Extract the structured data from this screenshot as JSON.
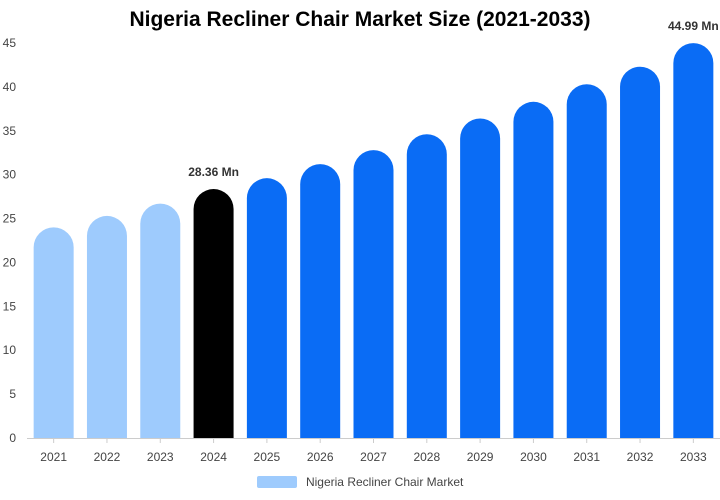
{
  "chart_data": {
    "type": "bar",
    "title": "Nigeria Recliner Chair Market Size (2021-2033)",
    "xlabel": "",
    "ylabel": "",
    "categories": [
      "2021",
      "2022",
      "2023",
      "2024",
      "2025",
      "2026",
      "2027",
      "2028",
      "2029",
      "2030",
      "2031",
      "2032",
      "2033"
    ],
    "series": [
      {
        "name": "Nigeria Recliner Chair Market",
        "values": [
          24.0,
          25.3,
          26.7,
          28.36,
          29.6,
          31.2,
          32.8,
          34.6,
          36.4,
          38.3,
          40.3,
          42.3,
          44.99
        ]
      }
    ],
    "ylim": [
      0,
      45
    ],
    "yticks": [
      0,
      5,
      10,
      15,
      20,
      25,
      30,
      35,
      40,
      45
    ],
    "data_labels": [
      {
        "category": "2024",
        "text": "28.36 Mn"
      },
      {
        "category": "2033",
        "text": "44.99 Mn"
      }
    ],
    "bar_colors": {
      "historical": "#9ecbfd",
      "current": "#000000",
      "forecast": "#0a6cf5"
    },
    "category_roles": [
      "historical",
      "historical",
      "historical",
      "current",
      "forecast",
      "forecast",
      "forecast",
      "forecast",
      "forecast",
      "forecast",
      "forecast",
      "forecast",
      "forecast"
    ],
    "grid": false,
    "legend": {
      "position": "bottom",
      "color": "#9ecbfd"
    }
  }
}
